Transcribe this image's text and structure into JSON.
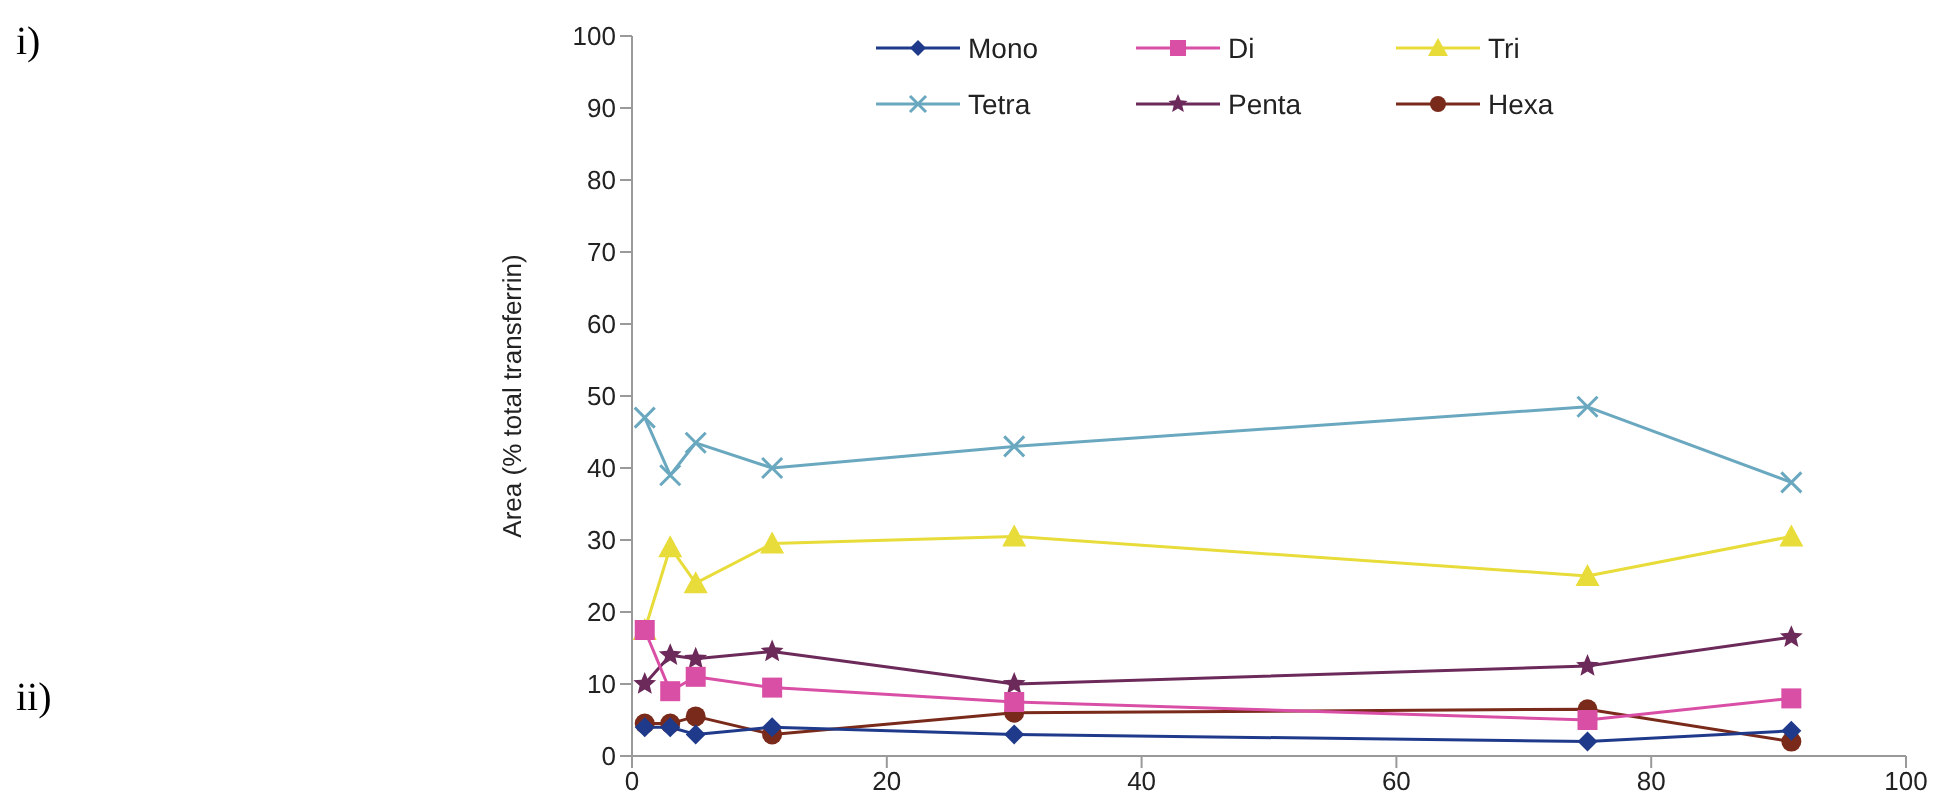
{
  "chart_data": {
    "type": "line",
    "ylabel": "Area (% total transferrin)",
    "x": [
      1,
      3,
      5,
      11,
      30,
      75,
      91
    ],
    "series": [
      {
        "name": "Mono",
        "color": "#1f3a8a",
        "marker": "diamond",
        "values": [
          4,
          4,
          3,
          4,
          3,
          2,
          3.5
        ]
      },
      {
        "name": "Di",
        "color": "#d94fa6",
        "marker": "square",
        "values": [
          17.5,
          9,
          11,
          9.5,
          7.5,
          5,
          8
        ]
      },
      {
        "name": "Tri",
        "color": "#e8dc3a",
        "marker": "triangle",
        "values": [
          17.5,
          29,
          24,
          29.5,
          30.5,
          25,
          30.5
        ]
      },
      {
        "name": "Tetra",
        "color": "#6aa8c0",
        "marker": "cross",
        "values": [
          47,
          39,
          43.5,
          40,
          43,
          48.5,
          38
        ]
      },
      {
        "name": "Penta",
        "color": "#6b2a5a",
        "marker": "star",
        "values": [
          10,
          14,
          13.5,
          14.5,
          10,
          12.5,
          16.5
        ]
      },
      {
        "name": "Hexa",
        "color": "#7a2a1a",
        "marker": "circle",
        "values": [
          4.5,
          4.5,
          5.5,
          3,
          6,
          6.5,
          2
        ]
      }
    ],
    "xlim": [
      0,
      100
    ],
    "xticks": [
      0,
      20,
      40,
      60,
      80,
      100
    ],
    "ylim": [
      0,
      100
    ],
    "yticks": [
      0,
      10,
      20,
      30,
      40,
      50,
      60,
      70,
      80,
      90,
      100
    ],
    "grid": false,
    "legend": "top",
    "annotations": [
      "i)",
      "ii)"
    ]
  }
}
